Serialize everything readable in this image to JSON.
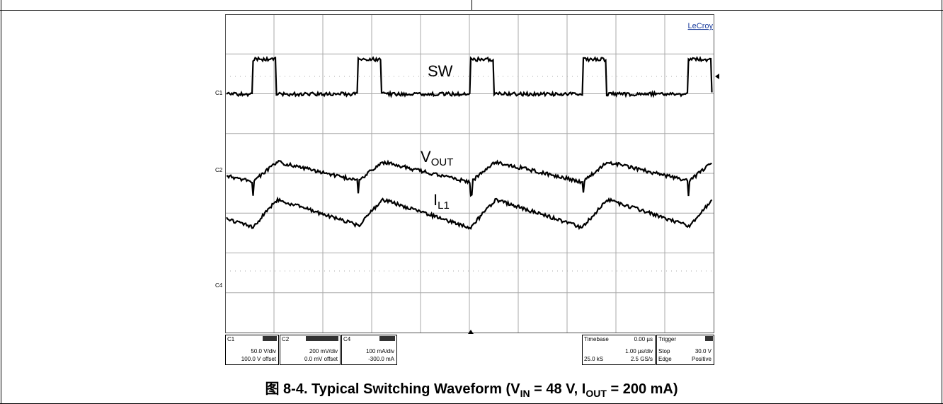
{
  "scope": {
    "brand": "LeCroy",
    "labels": {
      "sw": "SW",
      "vout": "V",
      "vout_sub": "OUT",
      "il": "I",
      "il_sub": "L1"
    },
    "channel_markers": [
      "C1",
      "C2",
      "C4"
    ],
    "channels": [
      {
        "name": "C1",
        "scale": "50.0 V/div",
        "offset": "100.0 V offset"
      },
      {
        "name": "C2",
        "scale": "200 mV/div",
        "offset": "0.0 mV offset"
      },
      {
        "name": "C4",
        "scale": "100 mA/div",
        "offset": "-300.0 mA"
      }
    ],
    "timebase": {
      "label": "Timebase",
      "delay": "0.00 µs",
      "scale": "1.00 µs/div",
      "samples": "25.0 kS",
      "rate": "2.5 GS/s"
    },
    "trigger": {
      "label": "Trigger",
      "mode": "Stop",
      "level": "30.0 V",
      "type": "Edge",
      "slope": "Positive"
    }
  },
  "caption": {
    "prefix": "图 8-4. Typical Switching Waveform (V",
    "sub1": "IN",
    "mid": " = 48 V, I",
    "sub2": "OUT",
    "suffix": " = 200 mA)"
  }
}
